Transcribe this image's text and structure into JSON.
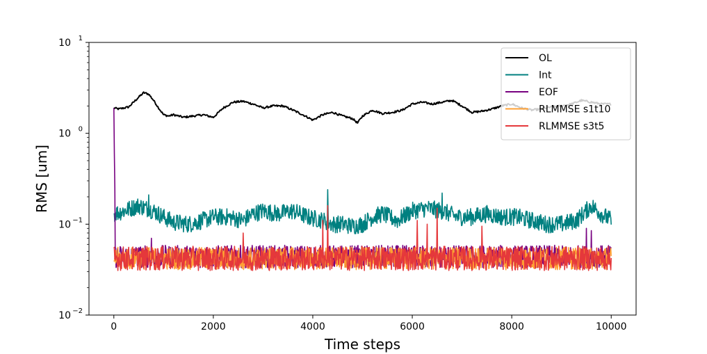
{
  "chart_data": {
    "type": "line",
    "xlabel": "Time steps",
    "ylabel": "RMS [um]",
    "x_range": [
      0,
      10000
    ],
    "xlim": [
      -500,
      10500
    ],
    "ylim": [
      0.01,
      10
    ],
    "y_scale": "log",
    "grid": false,
    "legend_position": "top-right",
    "x_ticks": [
      {
        "value": 0,
        "label": "0"
      },
      {
        "value": 2000,
        "label": "2000"
      },
      {
        "value": 4000,
        "label": "4000"
      },
      {
        "value": 6000,
        "label": "6000"
      },
      {
        "value": 8000,
        "label": "8000"
      },
      {
        "value": 10000,
        "label": "10000"
      }
    ],
    "y_ticks": [
      {
        "value": 0.01,
        "base": "10",
        "exp": "−2"
      },
      {
        "value": 0.1,
        "base": "10",
        "exp": "−1"
      },
      {
        "value": 1,
        "base": "10",
        "exp": "0"
      },
      {
        "value": 10,
        "base": "10",
        "exp": "1"
      }
    ],
    "series": [
      {
        "name": "OL",
        "color": "#000000",
        "x": [
          0,
          100,
          300,
          500,
          600,
          700,
          800,
          900,
          1000,
          1100,
          1200,
          1400,
          1600,
          1800,
          2000,
          2200,
          2400,
          2600,
          2800,
          3000,
          3200,
          3400,
          3600,
          3800,
          4000,
          4200,
          4400,
          4600,
          4800,
          4900,
          5000,
          5200,
          5400,
          5600,
          5800,
          6000,
          6200,
          6400,
          6600,
          6800,
          7000,
          7200,
          7400,
          7600,
          7800,
          8000,
          8200,
          8400,
          8600,
          8800,
          9000,
          9200,
          9400,
          9600,
          9800,
          10000
        ],
        "values": [
          1.9,
          1.85,
          1.95,
          2.5,
          2.8,
          2.7,
          2.3,
          1.9,
          1.6,
          1.55,
          1.6,
          1.5,
          1.55,
          1.6,
          1.5,
          1.9,
          2.2,
          2.25,
          2.1,
          1.9,
          2.0,
          2.0,
          1.8,
          1.6,
          1.4,
          1.6,
          1.7,
          1.55,
          1.45,
          1.3,
          1.55,
          1.8,
          1.65,
          1.7,
          1.8,
          2.1,
          2.2,
          2.1,
          2.2,
          2.3,
          2.0,
          1.7,
          1.75,
          1.85,
          2.0,
          2.1,
          1.9,
          1.8,
          1.85,
          1.95,
          2.0,
          2.1,
          2.3,
          2.2,
          2.1,
          2.1
        ]
      },
      {
        "name": "Int",
        "color": "#008080",
        "base_x": [
          0,
          200,
          500,
          800,
          1000,
          1200,
          1500,
          1800,
          2000,
          2300,
          2600,
          2800,
          3000,
          3300,
          3600,
          3900,
          4200,
          4400,
          4600,
          4800,
          5000,
          5200,
          5400,
          5700,
          6000,
          6300,
          6600,
          6900,
          7200,
          7500,
          7800,
          8100,
          8400,
          8700,
          9000,
          9300,
          9600,
          9800,
          10000
        ],
        "base_values": [
          0.13,
          0.14,
          0.16,
          0.14,
          0.12,
          0.105,
          0.1,
          0.11,
          0.12,
          0.12,
          0.11,
          0.13,
          0.14,
          0.13,
          0.14,
          0.12,
          0.11,
          0.1,
          0.1,
          0.095,
          0.1,
          0.12,
          0.13,
          0.11,
          0.14,
          0.15,
          0.14,
          0.12,
          0.12,
          0.13,
          0.12,
          0.12,
          0.11,
          0.1,
          0.1,
          0.11,
          0.16,
          0.13,
          0.11
        ],
        "noise": 0.1,
        "spikes": [
          {
            "x": 4300,
            "value": 0.24
          },
          {
            "x": 6600,
            "value": 0.22
          },
          {
            "x": 700,
            "value": 0.21
          }
        ]
      },
      {
        "name": "EOF",
        "color": "#770080",
        "base_value": 0.044,
        "noise": 0.13,
        "initial": [
          {
            "x": 0,
            "value": 1.9
          },
          {
            "x": 10,
            "value": 0.6
          },
          {
            "x": 20,
            "value": 0.25
          }
        ],
        "spikes": [
          {
            "x": 9500,
            "value": 0.09
          },
          {
            "x": 9600,
            "value": 0.085
          },
          {
            "x": 750,
            "value": 0.07
          }
        ]
      },
      {
        "name": "RLMMSE s1t10",
        "color": "#ffa033",
        "base_value": 0.042,
        "noise": 0.13,
        "spikes": []
      },
      {
        "name": "RLMMSE s3t5",
        "color": "#e5383b",
        "base_value": 0.042,
        "noise": 0.14,
        "spikes": [
          {
            "x": 4300,
            "value": 0.16
          },
          {
            "x": 6500,
            "value": 0.15
          },
          {
            "x": 4200,
            "value": 0.11
          },
          {
            "x": 6100,
            "value": 0.11
          },
          {
            "x": 6300,
            "value": 0.1
          },
          {
            "x": 7400,
            "value": 0.095
          },
          {
            "x": 2600,
            "value": 0.08
          }
        ]
      }
    ]
  }
}
